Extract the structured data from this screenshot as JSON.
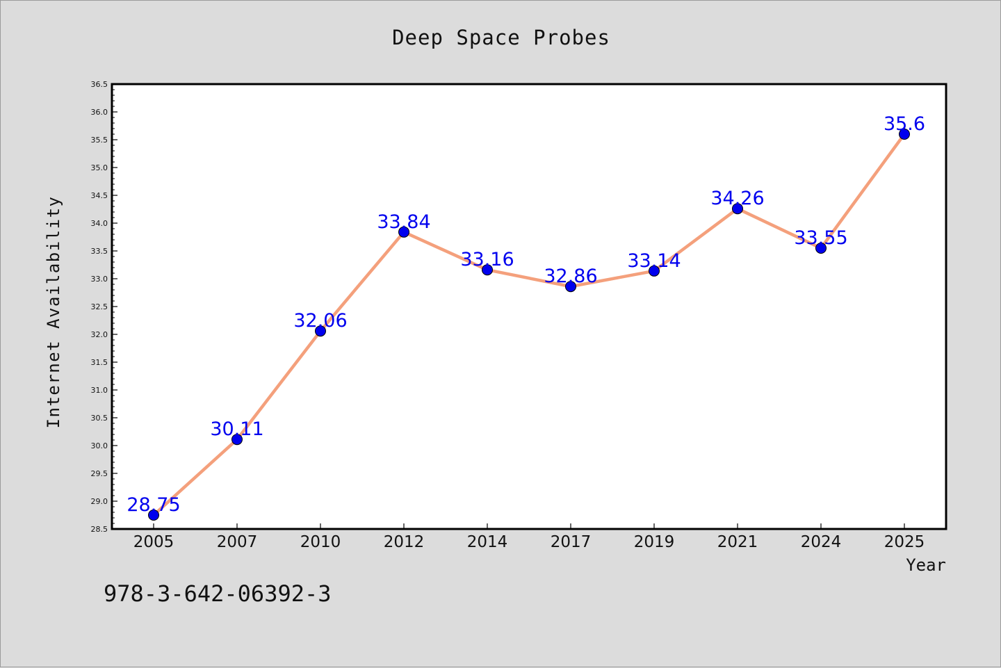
{
  "chart_data": {
    "type": "line",
    "title": "Deep Space Probes",
    "xlabel": "Year",
    "ylabel": "Internet Availability",
    "categories": [
      "2005",
      "2007",
      "2010",
      "2012",
      "2014",
      "2017",
      "2019",
      "2021",
      "2024",
      "2025"
    ],
    "series": [
      {
        "values": [
          28.75,
          30.11,
          32.06,
          33.84,
          33.16,
          32.86,
          33.14,
          34.26,
          33.55,
          35.6
        ]
      }
    ],
    "data_labels": [
      "28.75",
      "30.11",
      "32.06",
      "33.84",
      "33.16",
      "32.86",
      "33.14",
      "34.26",
      "33.55",
      "35.6"
    ],
    "ylim": [
      28.5,
      36.5
    ],
    "y_ticks": [
      "28.5",
      "29.0",
      "29.5",
      "30.0",
      "30.5",
      "31.0",
      "31.5",
      "32.0",
      "32.5",
      "33.0",
      "33.5",
      "34.0",
      "34.5",
      "35.0",
      "35.5",
      "36.0",
      "36.5"
    ],
    "grid": false,
    "line_color": "#f4a07c",
    "marker_color": "#0000ee",
    "label_color": "#0000ee"
  },
  "footer": {
    "isbn": "978-3-642-06392-3"
  }
}
